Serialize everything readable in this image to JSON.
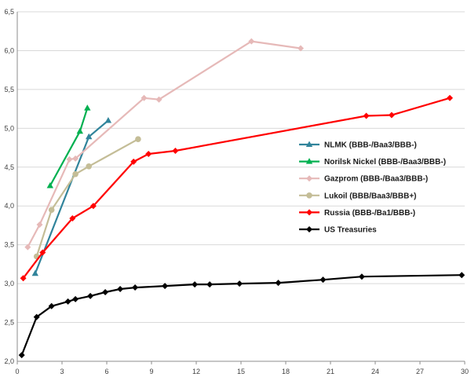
{
  "chart_data": {
    "type": "line",
    "xlim": [
      0,
      30
    ],
    "ylim": [
      2.0,
      6.5
    ],
    "x_ticks": [
      "0",
      "3",
      "6",
      "9",
      "12",
      "15",
      "18",
      "21",
      "24",
      "27",
      "30"
    ],
    "y_ticks": [
      "2,0",
      "2,5",
      "3,0",
      "3,5",
      "4,0",
      "4,5",
      "5,0",
      "5,5",
      "6,0",
      "6,5"
    ],
    "grid": "horizontal",
    "legend_position": "right",
    "series": [
      {
        "name": "NLMK (BBB-/Baa3/BBB-)",
        "color": "#31849B",
        "marker": "triangle",
        "points": [
          [
            1.2,
            3.13
          ],
          [
            4.8,
            4.89
          ],
          [
            6.1,
            5.1
          ]
        ]
      },
      {
        "name": "Norilsk Nickel (BBB-/Baa3/BBB-)",
        "color": "#00B050",
        "marker": "triangle",
        "points": [
          [
            2.2,
            4.26
          ],
          [
            4.2,
            4.96
          ],
          [
            4.7,
            5.26
          ]
        ]
      },
      {
        "name": "Gazprom (BBB-/Baa3/BBB-)",
        "color": "#E6B9B8",
        "marker": "diamond",
        "points": [
          [
            0.7,
            3.47
          ],
          [
            1.5,
            3.76
          ],
          [
            3.5,
            4.6
          ],
          [
            3.9,
            4.61
          ],
          [
            8.5,
            5.39
          ],
          [
            9.5,
            5.37
          ],
          [
            15.7,
            6.12
          ],
          [
            19.0,
            6.03
          ]
        ]
      },
      {
        "name": "Lukoil (BBB/Baa3/BBB+)",
        "color": "#C4BD97",
        "marker": "circle",
        "points": [
          [
            1.3,
            3.35
          ],
          [
            2.3,
            3.95
          ],
          [
            3.9,
            4.41
          ],
          [
            4.8,
            4.51
          ],
          [
            8.1,
            4.86
          ]
        ]
      },
      {
        "name": "Russia (BBB-/Ba1/BBB-)",
        "color": "#FF0000",
        "marker": "diamond",
        "points": [
          [
            0.4,
            3.07
          ],
          [
            1.7,
            3.4
          ],
          [
            3.7,
            3.84
          ],
          [
            5.1,
            4.0
          ],
          [
            7.8,
            4.57
          ],
          [
            8.8,
            4.67
          ],
          [
            10.6,
            4.71
          ],
          [
            23.4,
            5.16
          ],
          [
            25.1,
            5.17
          ],
          [
            29.0,
            5.39
          ]
        ]
      },
      {
        "name": "US Treasuries",
        "color": "#000000",
        "marker": "diamond",
        "points": [
          [
            0.3,
            2.08
          ],
          [
            1.3,
            2.57
          ],
          [
            2.3,
            2.71
          ],
          [
            3.4,
            2.77
          ],
          [
            3.9,
            2.8
          ],
          [
            4.9,
            2.84
          ],
          [
            5.9,
            2.89
          ],
          [
            6.9,
            2.93
          ],
          [
            7.9,
            2.95
          ],
          [
            9.9,
            2.97
          ],
          [
            11.9,
            2.99
          ],
          [
            12.9,
            2.99
          ],
          [
            14.9,
            3.0
          ],
          [
            17.5,
            3.01
          ],
          [
            20.5,
            3.05
          ],
          [
            23.1,
            3.09
          ],
          [
            29.8,
            3.11
          ]
        ]
      }
    ]
  }
}
